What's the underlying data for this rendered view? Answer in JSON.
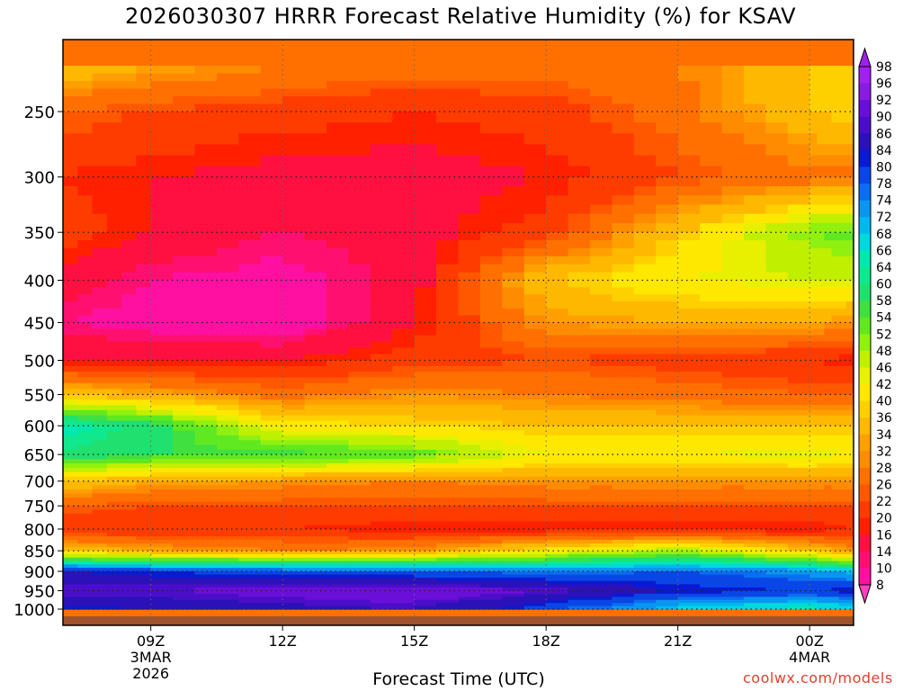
{
  "title": "2026030307 HRRR Forecast Relative Humidity (%) for KSAV",
  "watermark": "coolwx.com/models",
  "chart_data": {
    "type": "heatmap",
    "title": "2026030307 HRRR Forecast Relative Humidity (%) for KSAV",
    "xlabel": "Forecast Time (UTC)",
    "ylabel": "",
    "x_range_hours_utc": [
      7,
      25
    ],
    "x_ticks": [
      {
        "hour": 9,
        "lines": [
          "09Z",
          "3MAR",
          "2026"
        ]
      },
      {
        "hour": 12,
        "lines": [
          "12Z"
        ]
      },
      {
        "hour": 15,
        "lines": [
          "15Z"
        ]
      },
      {
        "hour": 18,
        "lines": [
          "18Z"
        ]
      },
      {
        "hour": 21,
        "lines": [
          "21Z"
        ]
      },
      {
        "hour": 24,
        "lines": [
          "00Z",
          "4MAR"
        ]
      }
    ],
    "y_scale": "log-pressure (inverted)",
    "y_range_hpa": [
      1000,
      200
    ],
    "y_ticks": [
      250,
      300,
      350,
      400,
      450,
      500,
      550,
      600,
      650,
      700,
      750,
      800,
      850,
      900,
      950,
      1000
    ],
    "grid": true,
    "colorbar": {
      "position": "right",
      "labels": [
        98,
        96,
        92,
        90,
        86,
        84,
        80,
        78,
        74,
        72,
        68,
        66,
        64,
        60,
        58,
        54,
        52,
        48,
        46,
        42,
        40,
        36,
        34,
        32,
        28,
        26,
        22,
        20,
        16,
        14,
        10,
        8
      ]
    },
    "times_hours_utc": [
      7,
      9,
      12,
      15,
      18,
      21,
      24,
      25
    ],
    "levels_hpa": [
      220,
      250,
      300,
      350,
      400,
      450,
      500,
      550,
      600,
      650,
      700,
      750,
      800,
      850,
      900,
      950,
      1000
    ],
    "rh_percent": [
      [
        40,
        36,
        32,
        30,
        30,
        32,
        40,
        42
      ],
      [
        28,
        26,
        24,
        22,
        24,
        30,
        40,
        42
      ],
      [
        22,
        20,
        18,
        18,
        20,
        26,
        30,
        30
      ],
      [
        24,
        20,
        16,
        18,
        24,
        40,
        54,
        56
      ],
      [
        18,
        14,
        12,
        18,
        40,
        46,
        48,
        48
      ],
      [
        14,
        12,
        10,
        20,
        34,
        36,
        36,
        34
      ],
      [
        20,
        20,
        20,
        24,
        26,
        24,
        22,
        20
      ],
      [
        40,
        36,
        30,
        34,
        32,
        30,
        28,
        28
      ],
      [
        68,
        62,
        44,
        42,
        40,
        40,
        40,
        40
      ],
      [
        64,
        60,
        60,
        56,
        46,
        46,
        48,
        46
      ],
      [
        40,
        36,
        34,
        32,
        34,
        34,
        34,
        34
      ],
      [
        28,
        26,
        26,
        26,
        26,
        26,
        26,
        26
      ],
      [
        22,
        22,
        22,
        20,
        20,
        20,
        20,
        22
      ],
      [
        40,
        36,
        32,
        34,
        44,
        52,
        40,
        34
      ],
      [
        86,
        84,
        82,
        80,
        78,
        80,
        76,
        72
      ],
      [
        92,
        92,
        94,
        96,
        92,
        86,
        84,
        86
      ],
      [
        84,
        86,
        88,
        90,
        82,
        70,
        66,
        68
      ]
    ]
  }
}
